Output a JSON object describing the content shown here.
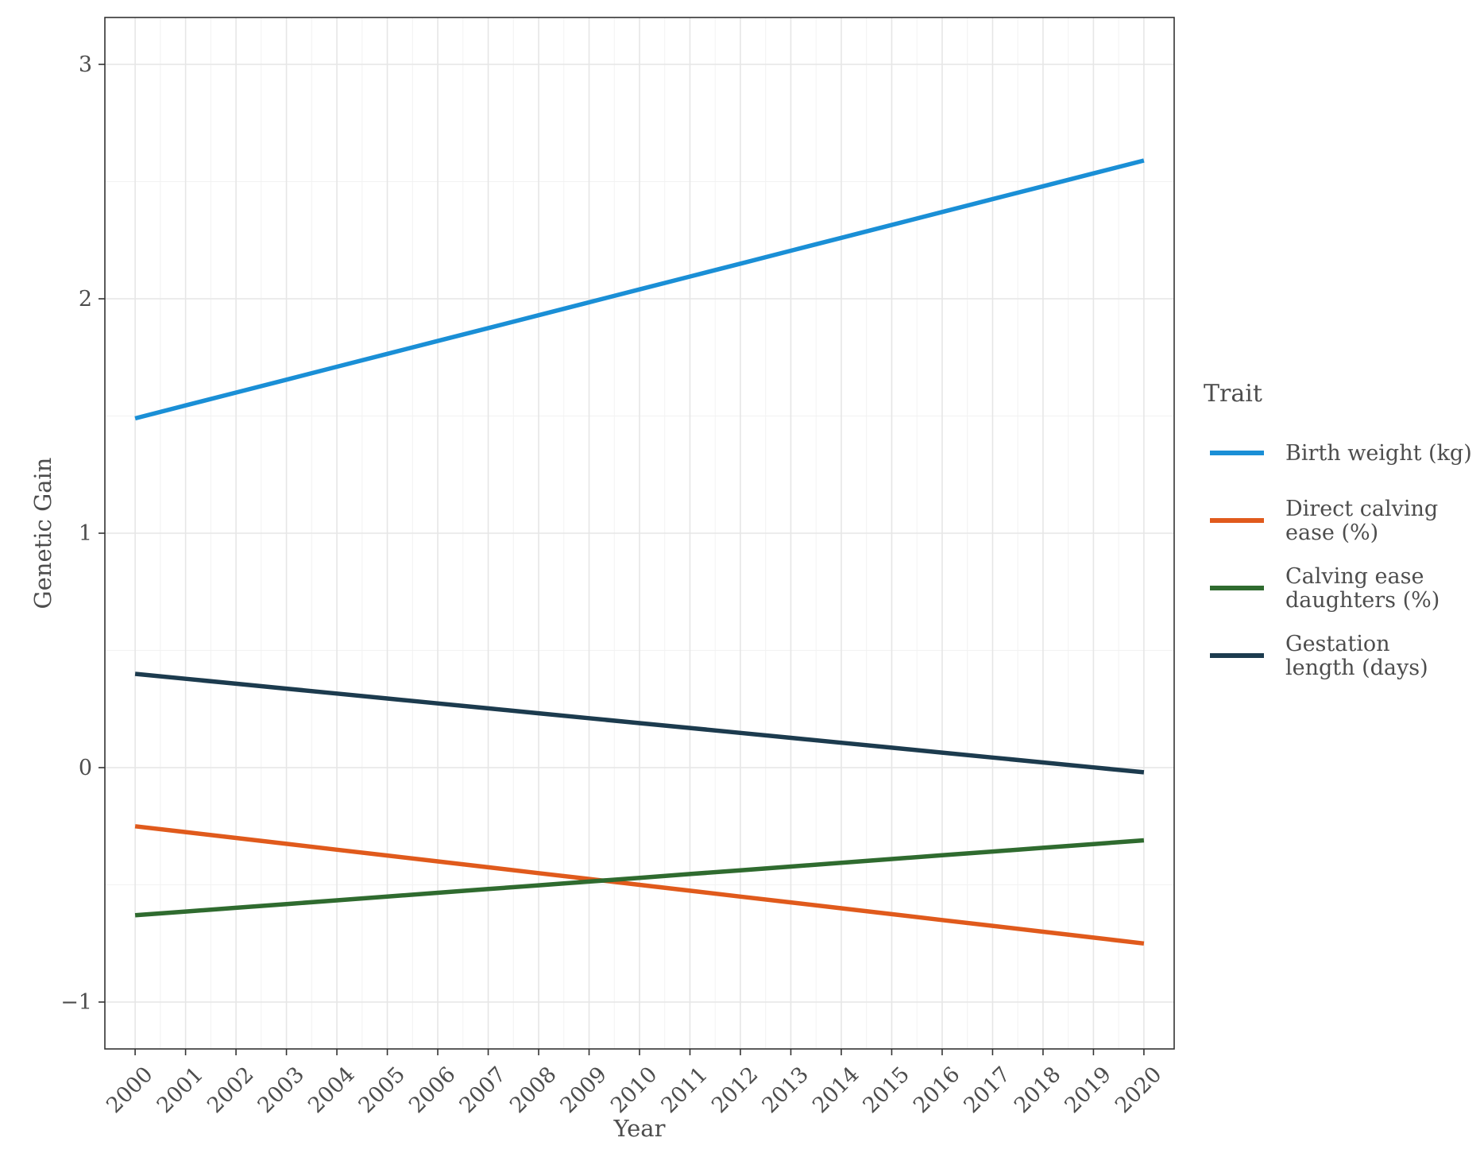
{
  "chart_data": {
    "type": "line",
    "xlabel": "Year",
    "ylabel": "Genetic Gain",
    "x": [
      2000,
      2001,
      2002,
      2003,
      2004,
      2005,
      2006,
      2007,
      2008,
      2009,
      2010,
      2011,
      2012,
      2013,
      2014,
      2015,
      2016,
      2017,
      2018,
      2019,
      2020
    ],
    "x_tick_labels": [
      "2000",
      "2001",
      "2002",
      "2003",
      "2004",
      "2005",
      "2006",
      "2007",
      "2008",
      "2009",
      "2010",
      "2011",
      "2012",
      "2013",
      "2014",
      "2015",
      "2016",
      "2017",
      "2018",
      "2019",
      "2020"
    ],
    "xlim": [
      1999.4,
      2020.6
    ],
    "ylim": [
      -1.2,
      3.2
    ],
    "y_ticks": [
      -1,
      0,
      1,
      2,
      3
    ],
    "y_tick_labels": [
      "−1",
      "0",
      "1",
      "2",
      "3"
    ],
    "grid": true,
    "legend": {
      "title": "Trait",
      "position": "right"
    },
    "series": [
      {
        "name": "Birth weight (kg)",
        "label_lines": [
          "Birth weight (kg)"
        ],
        "color": "#1a8fd6",
        "values": [
          1.49,
          1.545,
          1.6,
          1.655,
          1.71,
          1.765,
          1.82,
          1.875,
          1.93,
          1.985,
          2.04,
          2.095,
          2.15,
          2.205,
          2.26,
          2.315,
          2.37,
          2.425,
          2.48,
          2.535,
          2.59
        ]
      },
      {
        "name": "Direct calving ease (%)",
        "label_lines": [
          "Direct calving",
          "ease (%)"
        ],
        "color": "#e05a1c",
        "values": [
          -0.25,
          -0.275,
          -0.3,
          -0.325,
          -0.35,
          -0.375,
          -0.4,
          -0.425,
          -0.45,
          -0.475,
          -0.5,
          -0.525,
          -0.55,
          -0.575,
          -0.6,
          -0.625,
          -0.65,
          -0.675,
          -0.7,
          -0.725,
          -0.75
        ]
      },
      {
        "name": "Calving ease daughters (%)",
        "label_lines": [
          "Calving ease",
          "daughters (%)"
        ],
        "color": "#2f6b2f",
        "values": [
          -0.63,
          -0.614,
          -0.598,
          -0.582,
          -0.566,
          -0.55,
          -0.534,
          -0.518,
          -0.502,
          -0.486,
          -0.47,
          -0.454,
          -0.438,
          -0.422,
          -0.406,
          -0.39,
          -0.374,
          -0.358,
          -0.342,
          -0.326,
          -0.31
        ]
      },
      {
        "name": "Gestation length (days)",
        "label_lines": [
          "Gestation",
          "length (days)"
        ],
        "color": "#1c3b4e",
        "values": [
          0.4,
          0.379,
          0.358,
          0.337,
          0.316,
          0.295,
          0.274,
          0.253,
          0.232,
          0.211,
          0.19,
          0.169,
          0.148,
          0.127,
          0.106,
          0.085,
          0.064,
          0.043,
          0.022,
          0.001,
          -0.02
        ]
      }
    ]
  }
}
